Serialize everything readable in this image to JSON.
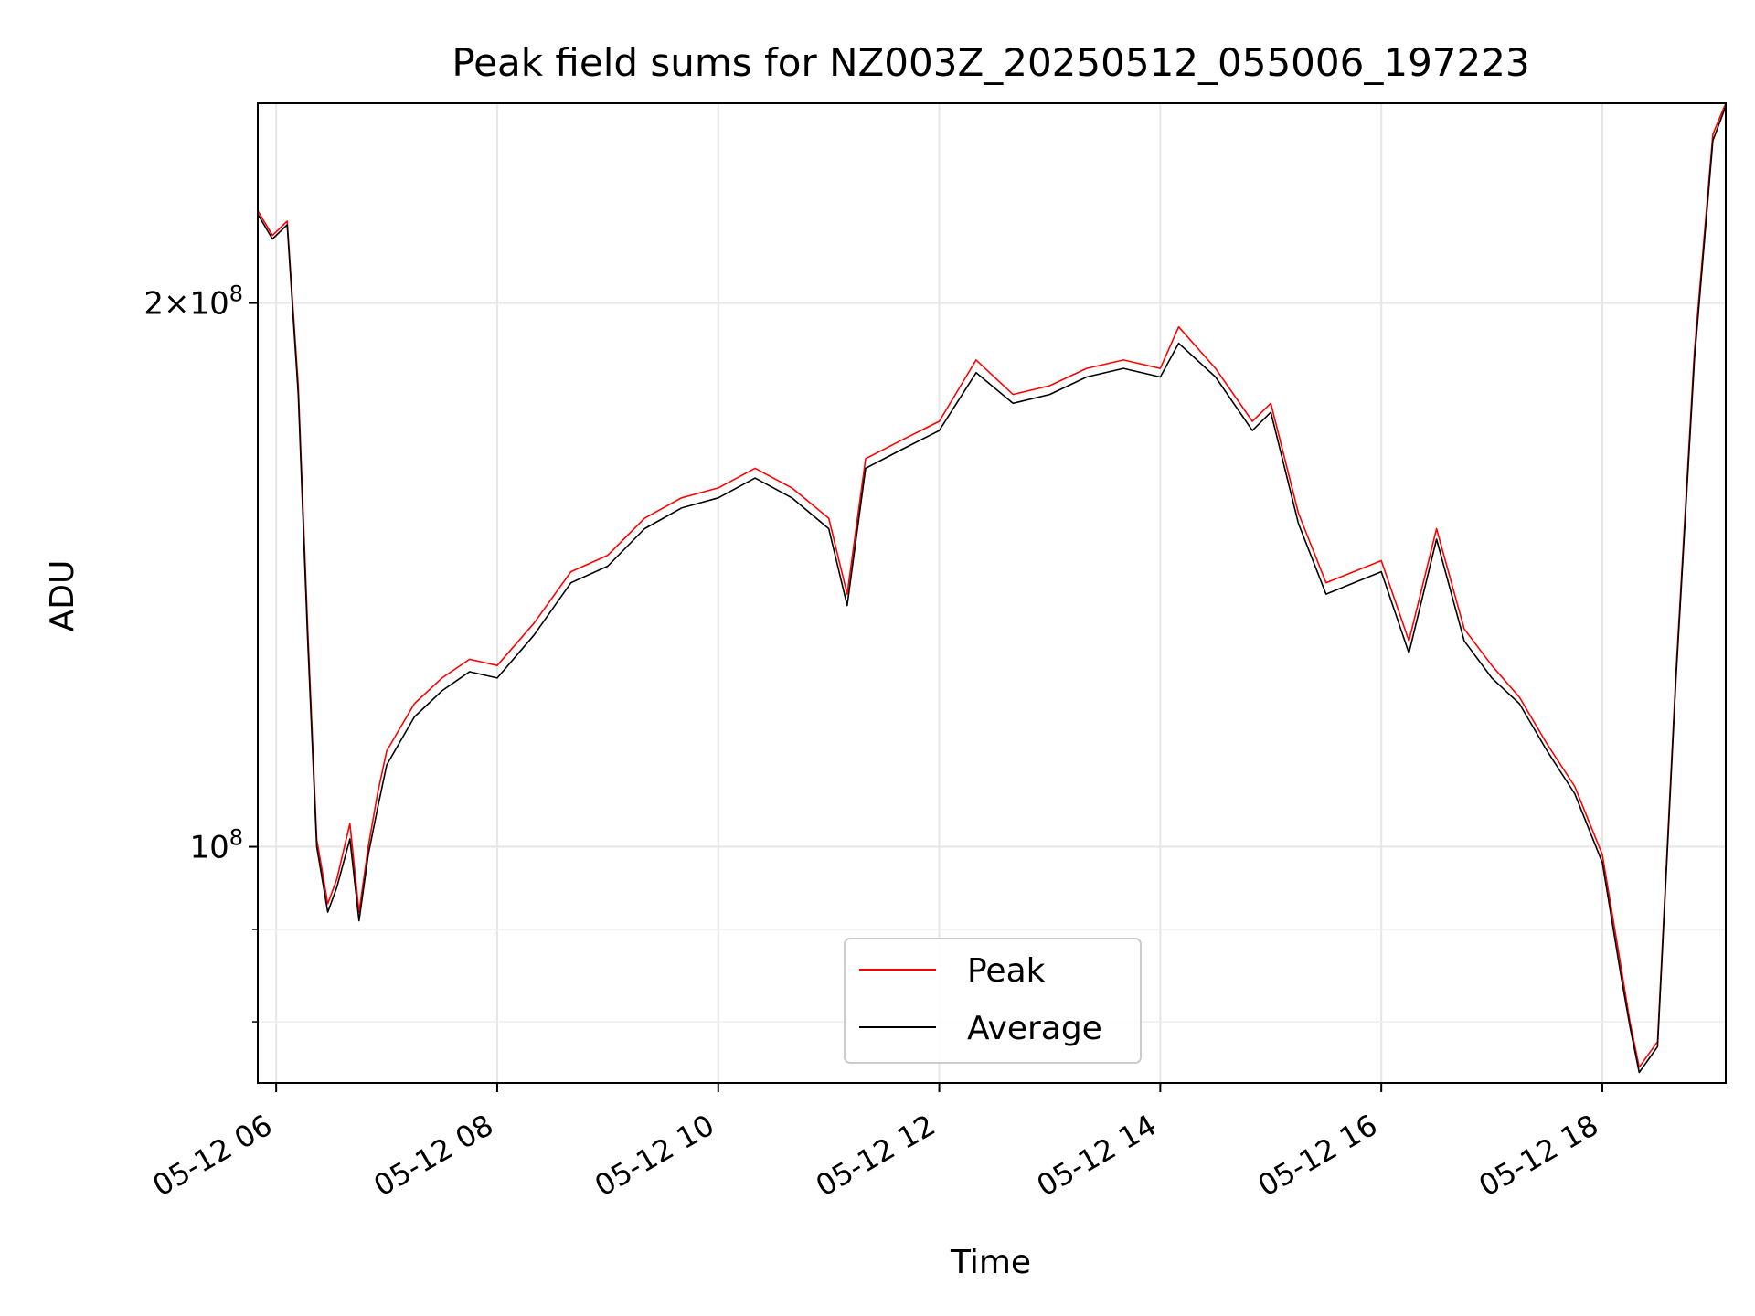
{
  "chart_data": {
    "type": "line",
    "title": "Peak field sums for NZ003Z_20250512_055006_197223",
    "xlabel": "Time",
    "ylabel": "ADU",
    "yscale": "log",
    "grid": true,
    "legend_position": "lower-center",
    "xlim": [
      "2025-05-12 05:50",
      "2025-05-12 19:07"
    ],
    "ylim": [
      74000000,
      258000000
    ],
    "x_ticks": [
      "05-12 06",
      "05-12 08",
      "05-12 10",
      "05-12 12",
      "05-12 14",
      "05-12 16",
      "05-12 18"
    ],
    "x_tick_times": [
      "2025-05-12 06:00",
      "2025-05-12 08:00",
      "2025-05-12 10:00",
      "2025-05-12 12:00",
      "2025-05-12 14:00",
      "2025-05-12 16:00",
      "2025-05-12 18:00"
    ],
    "y_major_ticks": [
      {
        "value": 100000000,
        "mantissa": "",
        "exponent": "8"
      },
      {
        "value": 200000000,
        "mantissa": "2",
        "exponent": "8"
      }
    ],
    "y_minor_ticks": [
      90000000,
      80000000
    ],
    "series": [
      {
        "name": "Peak",
        "color": "#ff0000",
        "x": [
          "2025-05-12 05:50",
          "2025-05-12 05:58",
          "2025-05-12 06:06",
          "2025-05-12 06:12",
          "2025-05-12 06:17",
          "2025-05-12 06:22",
          "2025-05-12 06:28",
          "2025-05-12 06:33",
          "2025-05-12 06:40",
          "2025-05-12 06:45",
          "2025-05-12 06:50",
          "2025-05-12 06:55",
          "2025-05-12 07:00",
          "2025-05-12 07:15",
          "2025-05-12 07:30",
          "2025-05-12 07:45",
          "2025-05-12 08:00",
          "2025-05-12 08:20",
          "2025-05-12 08:40",
          "2025-05-12 09:00",
          "2025-05-12 09:20",
          "2025-05-12 09:40",
          "2025-05-12 10:00",
          "2025-05-12 10:20",
          "2025-05-12 10:40",
          "2025-05-12 11:00",
          "2025-05-12 11:10",
          "2025-05-12 11:20",
          "2025-05-12 11:40",
          "2025-05-12 12:00",
          "2025-05-12 12:20",
          "2025-05-12 12:40",
          "2025-05-12 13:00",
          "2025-05-12 13:20",
          "2025-05-12 13:40",
          "2025-05-12 14:00",
          "2025-05-12 14:10",
          "2025-05-12 14:30",
          "2025-05-12 14:50",
          "2025-05-12 15:00",
          "2025-05-12 15:15",
          "2025-05-12 15:30",
          "2025-05-12 16:00",
          "2025-05-12 16:15",
          "2025-05-12 16:30",
          "2025-05-12 16:45",
          "2025-05-12 17:00",
          "2025-05-12 17:15",
          "2025-05-12 17:30",
          "2025-05-12 17:45",
          "2025-05-12 18:00",
          "2025-05-12 18:10",
          "2025-05-12 18:15",
          "2025-05-12 18:20",
          "2025-05-12 18:30",
          "2025-05-12 18:40",
          "2025-05-12 18:50",
          "2025-05-12 19:00",
          "2025-05-12 19:07"
        ],
        "y": [
          225000000,
          218000000,
          222000000,
          180000000,
          133000000,
          101000000,
          93000000,
          96000000,
          103000000,
          92000000,
          100000000,
          107000000,
          113000000,
          120000000,
          124000000,
          127000000,
          126000000,
          133000000,
          142000000,
          145000000,
          152000000,
          156000000,
          158000000,
          162000000,
          158000000,
          152000000,
          138000000,
          164000000,
          168000000,
          172000000,
          186000000,
          178000000,
          180000000,
          184000000,
          186000000,
          184000000,
          194000000,
          184000000,
          172000000,
          176000000,
          153000000,
          140000000,
          144000000,
          130000000,
          150000000,
          132000000,
          126000000,
          121000000,
          114000000,
          108000000,
          99000000,
          86000000,
          80000000,
          75500000,
          78000000,
          125000000,
          188000000,
          248000000,
          258000000
        ]
      },
      {
        "name": "Average",
        "color": "#000000",
        "x": [
          "2025-05-12 05:50",
          "2025-05-12 05:58",
          "2025-05-12 06:06",
          "2025-05-12 06:12",
          "2025-05-12 06:17",
          "2025-05-12 06:22",
          "2025-05-12 06:28",
          "2025-05-12 06:33",
          "2025-05-12 06:40",
          "2025-05-12 06:45",
          "2025-05-12 06:50",
          "2025-05-12 06:55",
          "2025-05-12 07:00",
          "2025-05-12 07:15",
          "2025-05-12 07:30",
          "2025-05-12 07:45",
          "2025-05-12 08:00",
          "2025-05-12 08:20",
          "2025-05-12 08:40",
          "2025-05-12 09:00",
          "2025-05-12 09:20",
          "2025-05-12 09:40",
          "2025-05-12 10:00",
          "2025-05-12 10:20",
          "2025-05-12 10:40",
          "2025-05-12 11:00",
          "2025-05-12 11:10",
          "2025-05-12 11:20",
          "2025-05-12 11:40",
          "2025-05-12 12:00",
          "2025-05-12 12:20",
          "2025-05-12 12:40",
          "2025-05-12 13:00",
          "2025-05-12 13:20",
          "2025-05-12 13:40",
          "2025-05-12 14:00",
          "2025-05-12 14:10",
          "2025-05-12 14:30",
          "2025-05-12 14:50",
          "2025-05-12 15:00",
          "2025-05-12 15:15",
          "2025-05-12 15:30",
          "2025-05-12 16:00",
          "2025-05-12 16:15",
          "2025-05-12 16:30",
          "2025-05-12 16:45",
          "2025-05-12 17:00",
          "2025-05-12 17:15",
          "2025-05-12 17:30",
          "2025-05-12 17:45",
          "2025-05-12 18:00",
          "2025-05-12 18:10",
          "2025-05-12 18:15",
          "2025-05-12 18:20",
          "2025-05-12 18:30",
          "2025-05-12 18:40",
          "2025-05-12 18:50",
          "2025-05-12 19:00",
          "2025-05-12 19:07"
        ],
        "y": [
          224000000,
          217000000,
          221000000,
          178000000,
          131000000,
          100000000,
          92000000,
          95000000,
          101000000,
          91000000,
          99000000,
          105000000,
          111000000,
          118000000,
          122000000,
          125000000,
          124000000,
          131000000,
          140000000,
          143000000,
          150000000,
          154000000,
          156000000,
          160000000,
          156000000,
          150000000,
          136000000,
          162000000,
          166000000,
          170000000,
          183000000,
          176000000,
          178000000,
          182000000,
          184000000,
          182000000,
          190000000,
          182000000,
          170000000,
          174000000,
          151000000,
          138000000,
          142000000,
          128000000,
          148000000,
          130000000,
          124000000,
          120000000,
          113000000,
          107000000,
          98000000,
          85000000,
          79500000,
          75000000,
          77500000,
          124000000,
          186000000,
          246000000,
          257000000
        ]
      }
    ]
  }
}
